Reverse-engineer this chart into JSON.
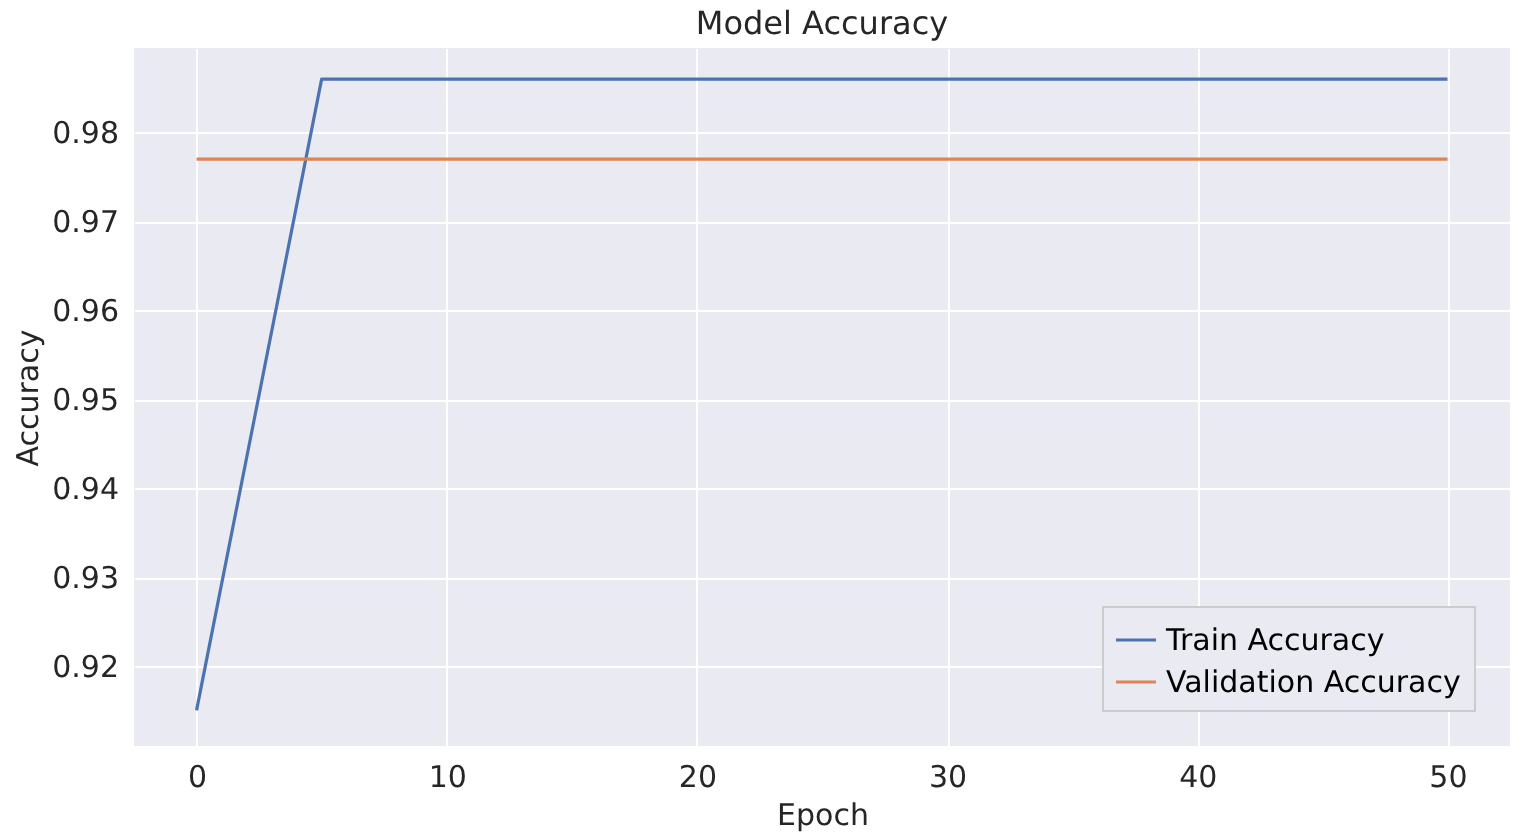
{
  "chart_data": {
    "type": "line",
    "title": "Model Accuracy",
    "xlabel": "Epoch",
    "ylabel": "Accuracy",
    "xlim": [
      -2.5,
      52.5
    ],
    "xticks": [
      0,
      10,
      20,
      30,
      40,
      50
    ],
    "ylim": [
      0.911,
      0.9895
    ],
    "yticks": [
      0.92,
      0.93,
      0.94,
      0.95,
      0.96,
      0.97,
      0.98
    ],
    "grid": true,
    "legend": "bottom right",
    "line_style": "solid",
    "series": [
      {
        "name": "Train Accuracy",
        "color": "#4c72b0",
        "x": [
          0,
          5,
          50
        ],
        "values": [
          0.915,
          0.986,
          0.986
        ]
      },
      {
        "name": "Validation Accuracy",
        "color": "#dd8452",
        "x": [
          0,
          50
        ],
        "values": [
          0.977,
          0.977
        ]
      }
    ]
  }
}
